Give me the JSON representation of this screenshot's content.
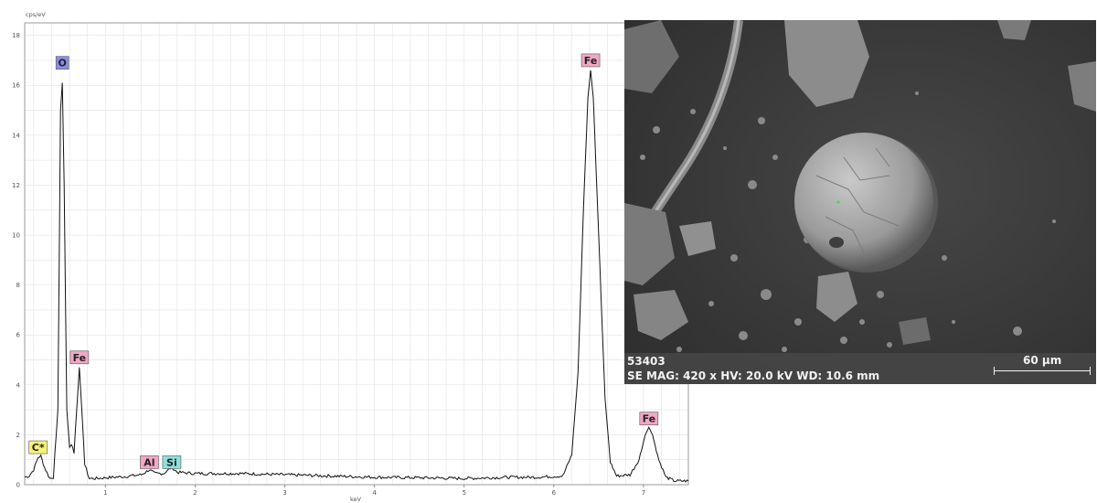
{
  "chart_data": {
    "type": "line",
    "ylabel": "cps/eV",
    "xlabel": "keV",
    "xlim": [
      0.1,
      7.5
    ],
    "ylim": [
      0,
      18.5
    ],
    "x_ticks": [
      1,
      2,
      3,
      4,
      5,
      6,
      7
    ],
    "y_ticks": [
      0,
      2,
      4,
      6,
      8,
      10,
      12,
      14,
      16,
      18
    ],
    "grid": true,
    "series": [
      {
        "points": [
          [
            0.1,
            0.3
          ],
          [
            0.15,
            0.35
          ],
          [
            0.2,
            0.6
          ],
          [
            0.25,
            1.1
          ],
          [
            0.28,
            1.15
          ],
          [
            0.32,
            0.7
          ],
          [
            0.38,
            0.25
          ],
          [
            0.42,
            0.3
          ],
          [
            0.47,
            3.0
          ],
          [
            0.5,
            15.0
          ],
          [
            0.52,
            16.1
          ],
          [
            0.54,
            12.0
          ],
          [
            0.57,
            3.0
          ],
          [
            0.6,
            1.5
          ],
          [
            0.62,
            1.6
          ],
          [
            0.65,
            1.3
          ],
          [
            0.68,
            3.0
          ],
          [
            0.71,
            4.7
          ],
          [
            0.74,
            2.8
          ],
          [
            0.77,
            0.8
          ],
          [
            0.82,
            0.25
          ],
          [
            0.9,
            0.25
          ],
          [
            1.0,
            0.28
          ],
          [
            1.2,
            0.32
          ],
          [
            1.4,
            0.4
          ],
          [
            1.49,
            0.6
          ],
          [
            1.55,
            0.45
          ],
          [
            1.65,
            0.45
          ],
          [
            1.74,
            0.7
          ],
          [
            1.8,
            0.5
          ],
          [
            2.0,
            0.45
          ],
          [
            2.5,
            0.45
          ],
          [
            3.0,
            0.4
          ],
          [
            3.5,
            0.35
          ],
          [
            4.0,
            0.3
          ],
          [
            4.5,
            0.28
          ],
          [
            5.0,
            0.25
          ],
          [
            5.5,
            0.3
          ],
          [
            5.8,
            0.3
          ],
          [
            6.1,
            0.35
          ],
          [
            6.2,
            1.2
          ],
          [
            6.27,
            4.5
          ],
          [
            6.33,
            11.0
          ],
          [
            6.38,
            15.5
          ],
          [
            6.41,
            16.6
          ],
          [
            6.44,
            15.5
          ],
          [
            6.5,
            10.0
          ],
          [
            6.57,
            3.5
          ],
          [
            6.63,
            0.9
          ],
          [
            6.7,
            0.35
          ],
          [
            6.85,
            0.4
          ],
          [
            6.95,
            1.0
          ],
          [
            7.02,
            2.0
          ],
          [
            7.06,
            2.3
          ],
          [
            7.1,
            2.0
          ],
          [
            7.17,
            1.0
          ],
          [
            7.25,
            0.3
          ],
          [
            7.35,
            0.15
          ],
          [
            7.5,
            0.15
          ]
        ]
      }
    ],
    "annotations": [
      {
        "text": "C*",
        "x": 0.25,
        "y": 1.5,
        "color": "#f4f37a"
      },
      {
        "text": "O",
        "x": 0.52,
        "y": 16.9,
        "color": "#8b8de6"
      },
      {
        "text": "Fe",
        "x": 0.71,
        "y": 5.1,
        "color": "#f1a7c6"
      },
      {
        "text": "Al",
        "x": 1.49,
        "y": 0.9,
        "color": "#f1a7c6"
      },
      {
        "text": "Si",
        "x": 1.74,
        "y": 0.9,
        "color": "#8ee0dc"
      },
      {
        "text": "Fe",
        "x": 6.41,
        "y": 17.0,
        "color": "#f1a7c6"
      },
      {
        "text": "Fe",
        "x": 7.06,
        "y": 2.65,
        "color": "#f1a7c6"
      }
    ]
  },
  "sem": {
    "id": "53403",
    "params": "SE  MAG: 420 x  HV: 20.0 kV  WD: 10.6 mm",
    "scale_label": "60 µm"
  }
}
